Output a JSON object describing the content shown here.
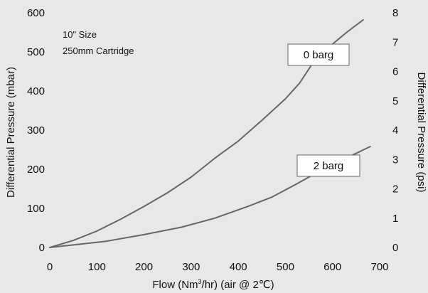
{
  "chart_data": {
    "type": "line",
    "title": "",
    "annotations": [
      "10\" Size",
      "250mm Cartridge"
    ],
    "xlabel_parts": {
      "pre": "Flow (Nm",
      "sup": "3",
      "post": "/hr) (air @ 2℃)"
    },
    "ylabel": "Differential Pressure (mbar)",
    "y2label": "Differential Pressure (psi)",
    "xlim": [
      0,
      700
    ],
    "ylim": [
      0,
      600
    ],
    "y2lim": [
      0,
      8
    ],
    "xticks": [
      0,
      100,
      200,
      300,
      400,
      500,
      600,
      700
    ],
    "yticks": [
      0,
      100,
      200,
      300,
      400,
      500,
      600
    ],
    "y2ticks": [
      0,
      1,
      2,
      3,
      4,
      5,
      6,
      7,
      8
    ],
    "grid": false,
    "line_color": "#666666",
    "series": [
      {
        "name": "0 barg",
        "x": [
          0,
          50,
          100,
          150,
          200,
          250,
          300,
          350,
          400,
          450,
          500,
          530,
          560,
          600,
          630,
          665
        ],
        "y": [
          0,
          18,
          42,
          72,
          105,
          140,
          180,
          228,
          272,
          325,
          380,
          420,
          475,
          520,
          550,
          582
        ]
      },
      {
        "name": "2 barg",
        "x": [
          0,
          60,
          120,
          200,
          280,
          350,
          420,
          470,
          520,
          580,
          640,
          680
        ],
        "y": [
          0,
          8,
          16,
          33,
          52,
          75,
          105,
          128,
          160,
          200,
          235,
          258
        ]
      }
    ]
  }
}
